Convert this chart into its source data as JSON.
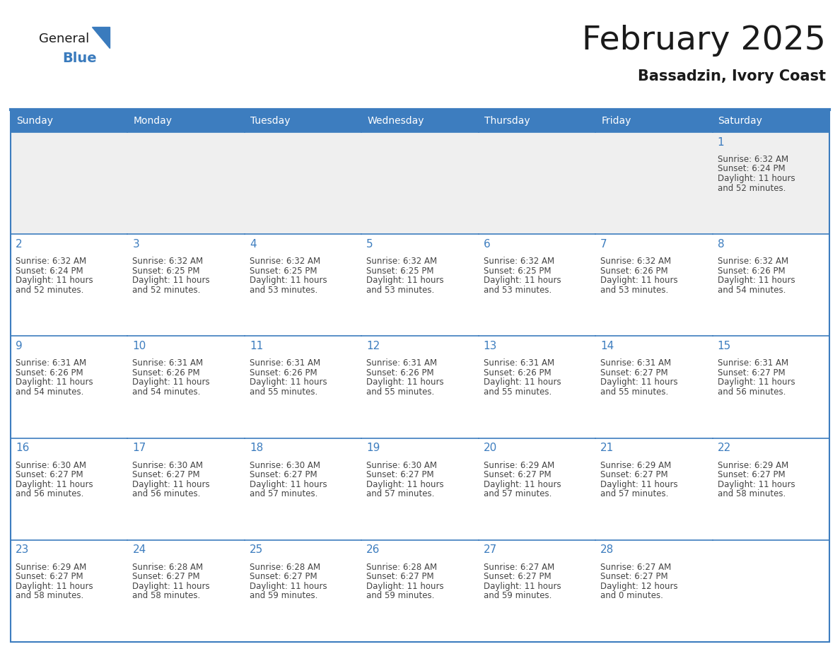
{
  "title": "February 2025",
  "subtitle": "Bassadzin, Ivory Coast",
  "days_of_week": [
    "Sunday",
    "Monday",
    "Tuesday",
    "Wednesday",
    "Thursday",
    "Friday",
    "Saturday"
  ],
  "header_bg_color": "#3D7DBF",
  "header_text_color": "#FFFFFF",
  "cell_bg_color": "#FFFFFF",
  "cell_row1_bg_color": "#EFEFEF",
  "border_color": "#3D7DBF",
  "day_number_color": "#3D7DBF",
  "text_color": "#444444",
  "title_color": "#1A1A1A",
  "logo_general_color": "#1A1A1A",
  "logo_blue_color": "#3A7BBD",
  "calendar_data": [
    [
      null,
      null,
      null,
      null,
      null,
      null,
      {
        "day": 1,
        "sunrise": "6:32 AM",
        "sunset": "6:24 PM",
        "daylight_h": "11 hours",
        "daylight_m": "and 52 minutes."
      }
    ],
    [
      {
        "day": 2,
        "sunrise": "6:32 AM",
        "sunset": "6:24 PM",
        "daylight_h": "11 hours",
        "daylight_m": "and 52 minutes."
      },
      {
        "day": 3,
        "sunrise": "6:32 AM",
        "sunset": "6:25 PM",
        "daylight_h": "11 hours",
        "daylight_m": "and 52 minutes."
      },
      {
        "day": 4,
        "sunrise": "6:32 AM",
        "sunset": "6:25 PM",
        "daylight_h": "11 hours",
        "daylight_m": "and 53 minutes."
      },
      {
        "day": 5,
        "sunrise": "6:32 AM",
        "sunset": "6:25 PM",
        "daylight_h": "11 hours",
        "daylight_m": "and 53 minutes."
      },
      {
        "day": 6,
        "sunrise": "6:32 AM",
        "sunset": "6:25 PM",
        "daylight_h": "11 hours",
        "daylight_m": "and 53 minutes."
      },
      {
        "day": 7,
        "sunrise": "6:32 AM",
        "sunset": "6:26 PM",
        "daylight_h": "11 hours",
        "daylight_m": "and 53 minutes."
      },
      {
        "day": 8,
        "sunrise": "6:32 AM",
        "sunset": "6:26 PM",
        "daylight_h": "11 hours",
        "daylight_m": "and 54 minutes."
      }
    ],
    [
      {
        "day": 9,
        "sunrise": "6:31 AM",
        "sunset": "6:26 PM",
        "daylight_h": "11 hours",
        "daylight_m": "and 54 minutes."
      },
      {
        "day": 10,
        "sunrise": "6:31 AM",
        "sunset": "6:26 PM",
        "daylight_h": "11 hours",
        "daylight_m": "and 54 minutes."
      },
      {
        "day": 11,
        "sunrise": "6:31 AM",
        "sunset": "6:26 PM",
        "daylight_h": "11 hours",
        "daylight_m": "and 55 minutes."
      },
      {
        "day": 12,
        "sunrise": "6:31 AM",
        "sunset": "6:26 PM",
        "daylight_h": "11 hours",
        "daylight_m": "and 55 minutes."
      },
      {
        "day": 13,
        "sunrise": "6:31 AM",
        "sunset": "6:26 PM",
        "daylight_h": "11 hours",
        "daylight_m": "and 55 minutes."
      },
      {
        "day": 14,
        "sunrise": "6:31 AM",
        "sunset": "6:27 PM",
        "daylight_h": "11 hours",
        "daylight_m": "and 55 minutes."
      },
      {
        "day": 15,
        "sunrise": "6:31 AM",
        "sunset": "6:27 PM",
        "daylight_h": "11 hours",
        "daylight_m": "and 56 minutes."
      }
    ],
    [
      {
        "day": 16,
        "sunrise": "6:30 AM",
        "sunset": "6:27 PM",
        "daylight_h": "11 hours",
        "daylight_m": "and 56 minutes."
      },
      {
        "day": 17,
        "sunrise": "6:30 AM",
        "sunset": "6:27 PM",
        "daylight_h": "11 hours",
        "daylight_m": "and 56 minutes."
      },
      {
        "day": 18,
        "sunrise": "6:30 AM",
        "sunset": "6:27 PM",
        "daylight_h": "11 hours",
        "daylight_m": "and 57 minutes."
      },
      {
        "day": 19,
        "sunrise": "6:30 AM",
        "sunset": "6:27 PM",
        "daylight_h": "11 hours",
        "daylight_m": "and 57 minutes."
      },
      {
        "day": 20,
        "sunrise": "6:29 AM",
        "sunset": "6:27 PM",
        "daylight_h": "11 hours",
        "daylight_m": "and 57 minutes."
      },
      {
        "day": 21,
        "sunrise": "6:29 AM",
        "sunset": "6:27 PM",
        "daylight_h": "11 hours",
        "daylight_m": "and 57 minutes."
      },
      {
        "day": 22,
        "sunrise": "6:29 AM",
        "sunset": "6:27 PM",
        "daylight_h": "11 hours",
        "daylight_m": "and 58 minutes."
      }
    ],
    [
      {
        "day": 23,
        "sunrise": "6:29 AM",
        "sunset": "6:27 PM",
        "daylight_h": "11 hours",
        "daylight_m": "and 58 minutes."
      },
      {
        "day": 24,
        "sunrise": "6:28 AM",
        "sunset": "6:27 PM",
        "daylight_h": "11 hours",
        "daylight_m": "and 58 minutes."
      },
      {
        "day": 25,
        "sunrise": "6:28 AM",
        "sunset": "6:27 PM",
        "daylight_h": "11 hours",
        "daylight_m": "and 59 minutes."
      },
      {
        "day": 26,
        "sunrise": "6:28 AM",
        "sunset": "6:27 PM",
        "daylight_h": "11 hours",
        "daylight_m": "and 59 minutes."
      },
      {
        "day": 27,
        "sunrise": "6:27 AM",
        "sunset": "6:27 PM",
        "daylight_h": "11 hours",
        "daylight_m": "and 59 minutes."
      },
      {
        "day": 28,
        "sunrise": "6:27 AM",
        "sunset": "6:27 PM",
        "daylight_h": "12 hours",
        "daylight_m": "and 0 minutes."
      },
      null
    ]
  ],
  "num_rows": 5,
  "num_cols": 7
}
